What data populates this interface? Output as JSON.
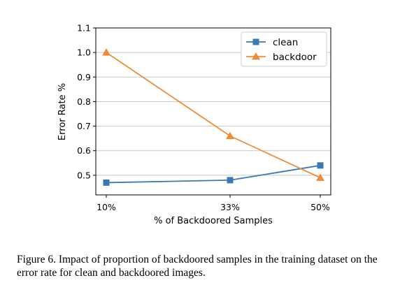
{
  "chart_data": {
    "type": "line",
    "categories": [
      "10%",
      "33%",
      "50%"
    ],
    "series": [
      {
        "name": "clean",
        "values": [
          0.47,
          0.48,
          0.54
        ],
        "color": "#3a78b5",
        "marker": "square"
      },
      {
        "name": "backdoor",
        "values": [
          1.0,
          0.66,
          0.49
        ],
        "color": "#f08c35",
        "marker": "triangle"
      }
    ],
    "xlabel": "% of Backdoored Samples",
    "ylabel": "Error Rate %",
    "ylim": [
      0.42,
      1.1
    ],
    "yticks": [
      0.5,
      0.6,
      0.7,
      0.8,
      0.9,
      1.0,
      1.1
    ],
    "ytick_labels": [
      "0.5",
      "0.6",
      "0.7",
      "0.8",
      "0.9",
      "1.0",
      "1.1"
    ],
    "grid": "horizontal",
    "legend_position": "top-right"
  },
  "caption": "Figure 6. Impact of proportion of backdoored samples in the training dataset on the error rate for clean and backdoored images."
}
